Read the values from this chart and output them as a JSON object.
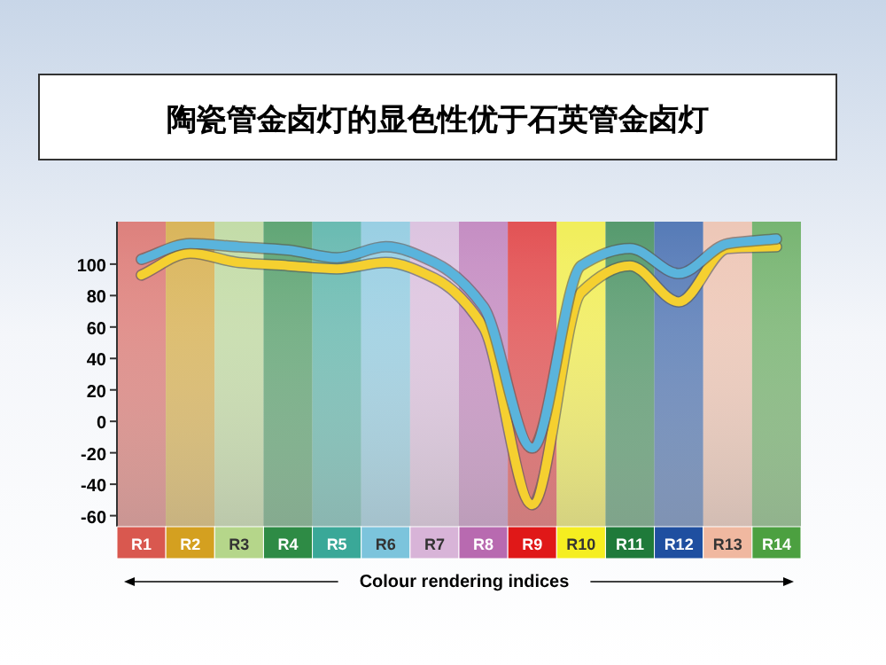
{
  "chart_data": {
    "type": "line",
    "title": "陶瓷管金卤灯的显色性优于石英管金卤灯",
    "xlabel": "Colour rendering indices",
    "categories": [
      "R1",
      "R2",
      "R3",
      "R4",
      "R5",
      "R6",
      "R7",
      "R8",
      "R9",
      "R10",
      "R11",
      "R12",
      "R13",
      "R14"
    ],
    "series": [
      {
        "color": "#5ab4dc",
        "values": [
          103,
          113,
          111,
          109,
          104,
          111,
          101,
          73,
          -17,
          99,
          110,
          94,
          113,
          116
        ]
      },
      {
        "color": "#f5d030",
        "values": [
          93,
          107,
          101,
          99,
          97,
          101,
          91,
          60,
          -53,
          82,
          99,
          76,
          110,
          111
        ]
      }
    ],
    "bands": [
      {
        "axis": "x",
        "from": "R1",
        "to": "R1",
        "color": "#d9584f"
      },
      {
        "axis": "x",
        "from": "R2",
        "to": "R2",
        "color": "#d4a020"
      },
      {
        "axis": "x",
        "from": "R3",
        "to": "R3",
        "color": "#b5d68a"
      },
      {
        "axis": "x",
        "from": "R4",
        "to": "R4",
        "color": "#2e8b45"
      },
      {
        "axis": "x",
        "from": "R5",
        "to": "R5",
        "color": "#3aa898"
      },
      {
        "axis": "x",
        "from": "R6",
        "to": "R6",
        "color": "#7cc4dc"
      },
      {
        "axis": "x",
        "from": "R7",
        "to": "R7",
        "color": "#d8b4d8"
      },
      {
        "axis": "x",
        "from": "R8",
        "to": "R8",
        "color": "#b86ab0"
      },
      {
        "axis": "x",
        "from": "R9",
        "to": "R9",
        "color": "#e01818"
      },
      {
        "axis": "x",
        "from": "R10",
        "to": "R10",
        "color": "#f5ee20"
      },
      {
        "axis": "x",
        "from": "R11",
        "to": "R11",
        "color": "#1f7a3a"
      },
      {
        "axis": "x",
        "from": "R12",
        "to": "R12",
        "color": "#1f4fa0"
      },
      {
        "axis": "x",
        "from": "R13",
        "to": "R13",
        "color": "#f0b8a0"
      },
      {
        "axis": "x",
        "from": "R14",
        "to": "R14",
        "color": "#4ca040"
      }
    ],
    "ylim": [
      -67,
      127
    ],
    "yticks": [
      100,
      80,
      60,
      40,
      20,
      0,
      -20,
      -40,
      -60
    ],
    "grid": false
  }
}
